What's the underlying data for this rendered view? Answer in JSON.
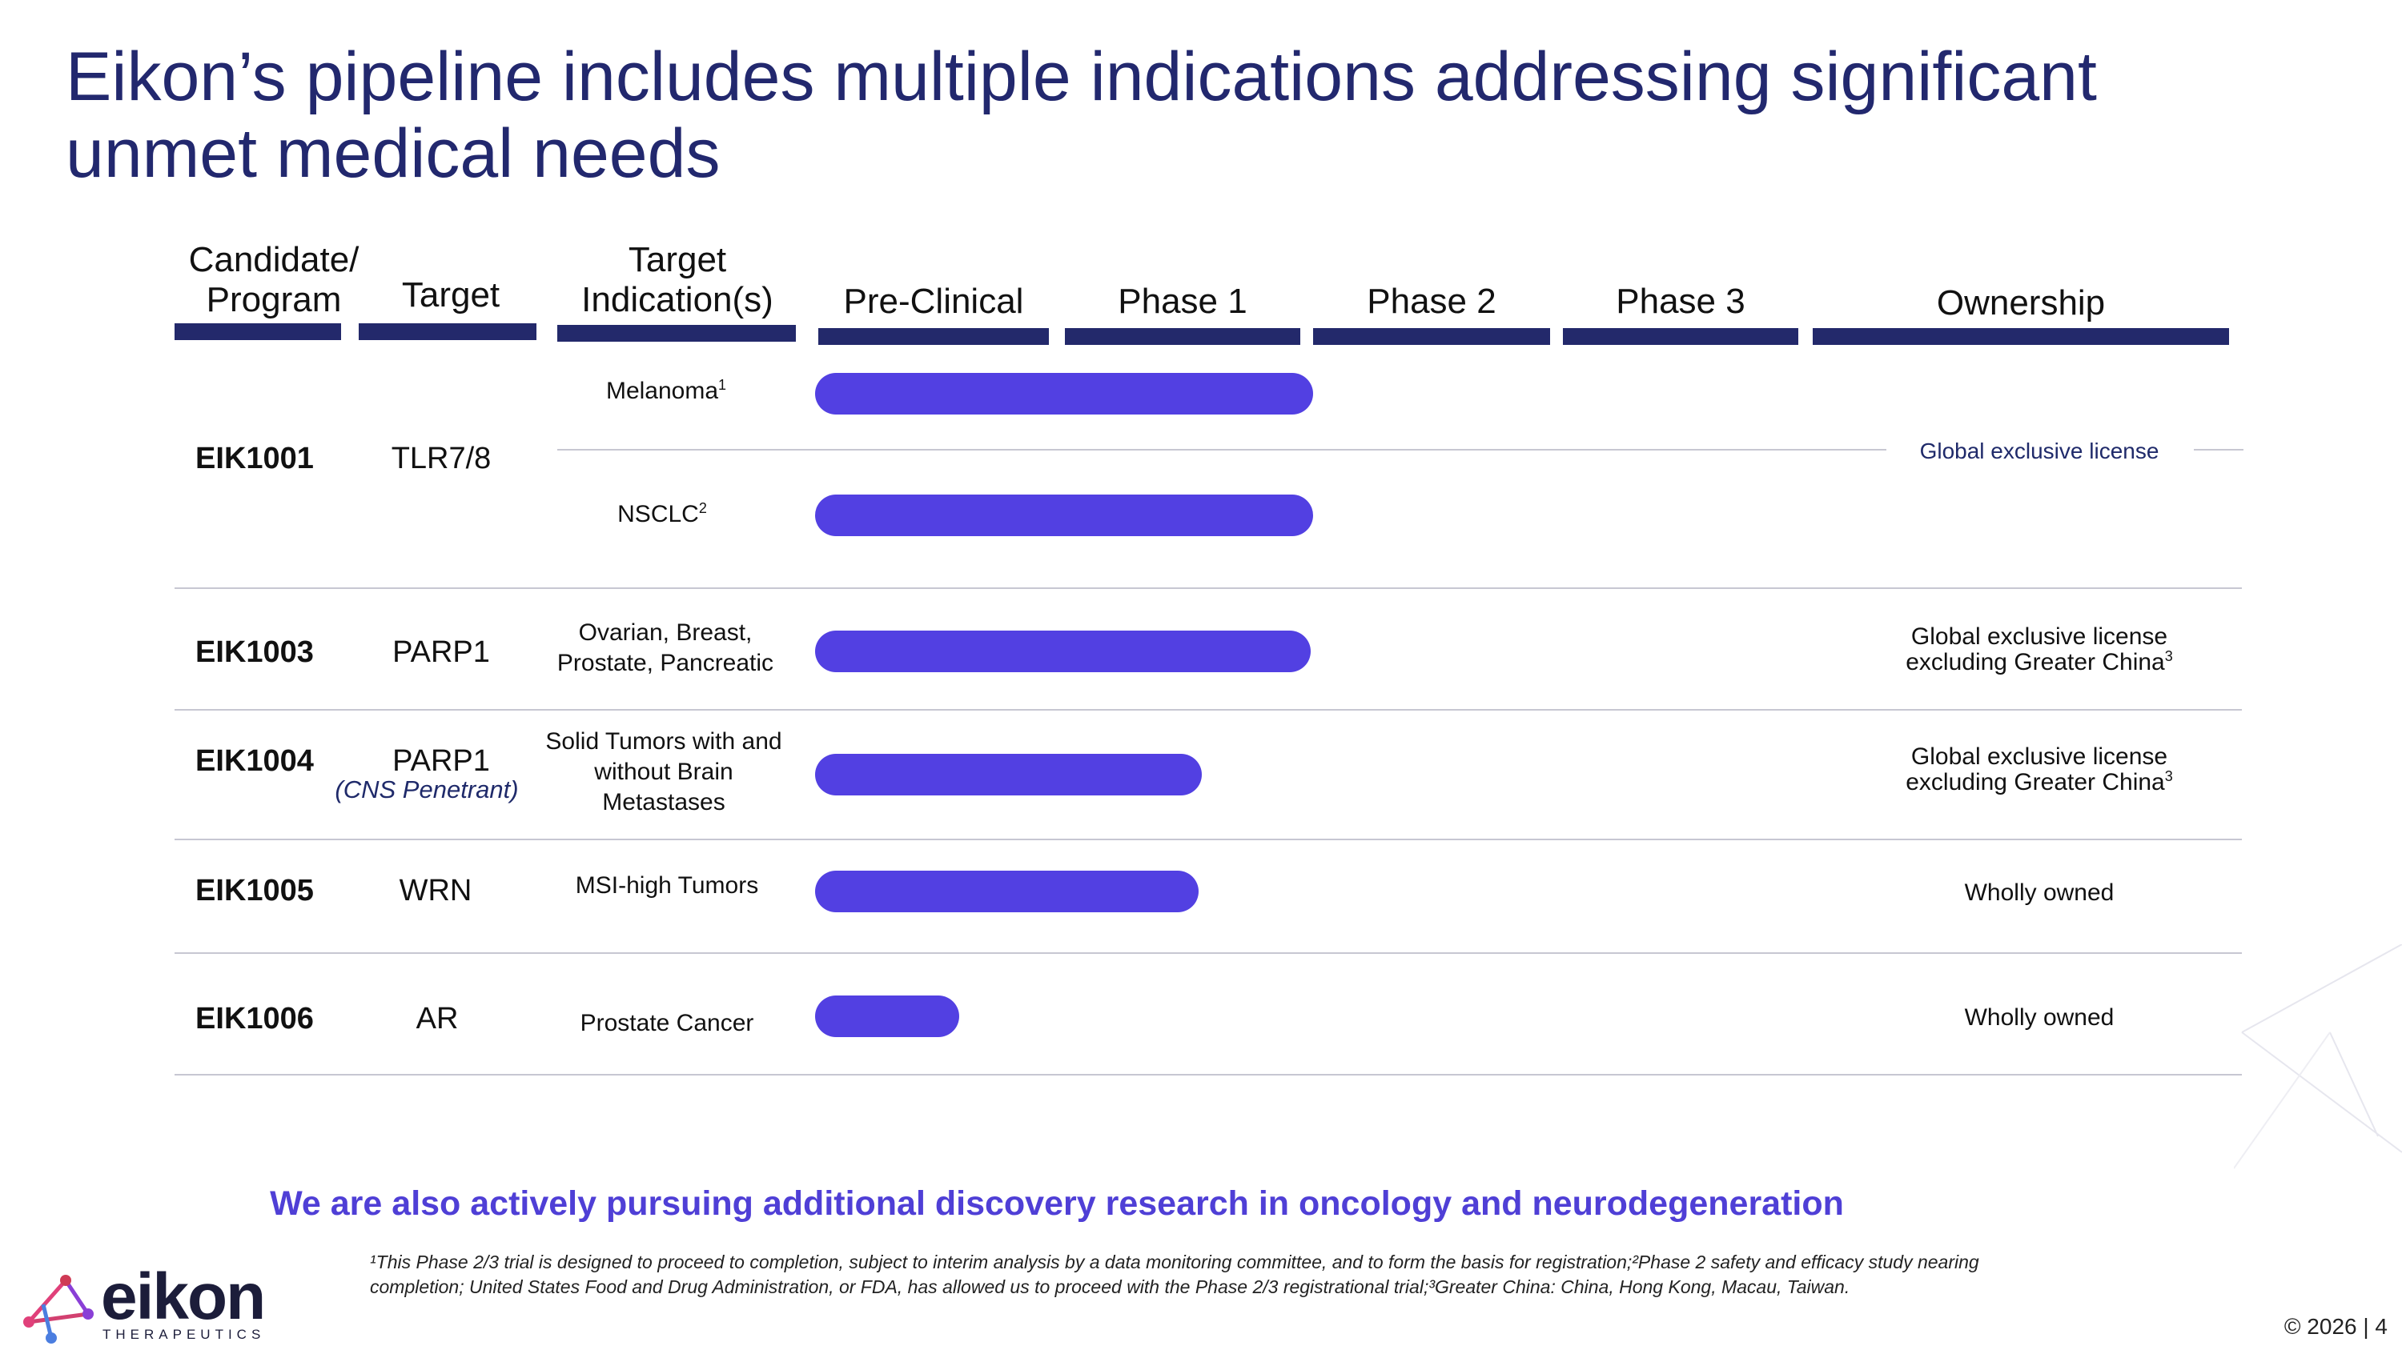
{
  "title": "Eikon’s pipeline includes multiple indications addressing significant unmet medical needs",
  "headers": {
    "candidate": "Candidate/ Program",
    "target": "Target",
    "indication": "Target Indication(s)",
    "preclinical": "Pre-Clinical",
    "phase1": "Phase 1",
    "phase2": "Phase 2",
    "phase3": "Phase 3",
    "ownership": "Ownership"
  },
  "rows": [
    {
      "candidate": "EIK1001",
      "target": "TLR7/8",
      "indications": [
        {
          "name": "Melanoma",
          "sup": "1",
          "progress_phase": 2.0
        },
        {
          "name": "NSCLC",
          "sup": "2",
          "progress_phase": 2.0
        }
      ],
      "ownership": "Global exclusive license"
    },
    {
      "candidate": "EIK1003",
      "target": "PARP1",
      "indications": [
        {
          "name": "Ovarian, Breast, Prostate, Pancreatic",
          "progress_phase": 1.99
        }
      ],
      "ownership": "Global exclusive license excluding Greater China",
      "ownership_sup": "3"
    },
    {
      "candidate": "EIK1004",
      "target": "PARP1",
      "target_note": "(CNS Penetrant)",
      "indications": [
        {
          "name": "Solid Tumors with and without Brain Metastases",
          "progress_phase": 1.55
        }
      ],
      "ownership": "Global exclusive license excluding Greater China",
      "ownership_sup": "3"
    },
    {
      "candidate": "EIK1005",
      "target": "WRN",
      "indications": [
        {
          "name": "MSI-high Tumors",
          "progress_phase": 1.54
        }
      ],
      "ownership": "Wholly owned"
    },
    {
      "candidate": "EIK1006",
      "target": "AR",
      "indications": [
        {
          "name": "Prostate Cancer",
          "progress_phase": 0.57
        }
      ],
      "ownership": "Wholly owned"
    }
  ],
  "tagline": "We are also actively pursuing additional discovery research in oncology and neurodegeneration",
  "footnote": "¹This Phase 2/3 trial is designed to proceed to completion, subject to interim analysis by a data monitoring committee, and to form the basis for registration;²Phase 2 safety and efficacy study nearing completion; United States Food and Drug Administration, or FDA, has allowed us to proceed with the Phase 2/3 registrational trial;³Greater China: China, Hong Kong, Macau, Taiwan.",
  "logo": {
    "word": "eikon",
    "sub": "THERAPEUTICS"
  },
  "copyright": "© 2026 | 4",
  "colors": {
    "title": "#22286e",
    "header_bar": "#23296b",
    "progress_bar": "#5240e2",
    "tagline": "#4f3fd6"
  }
}
